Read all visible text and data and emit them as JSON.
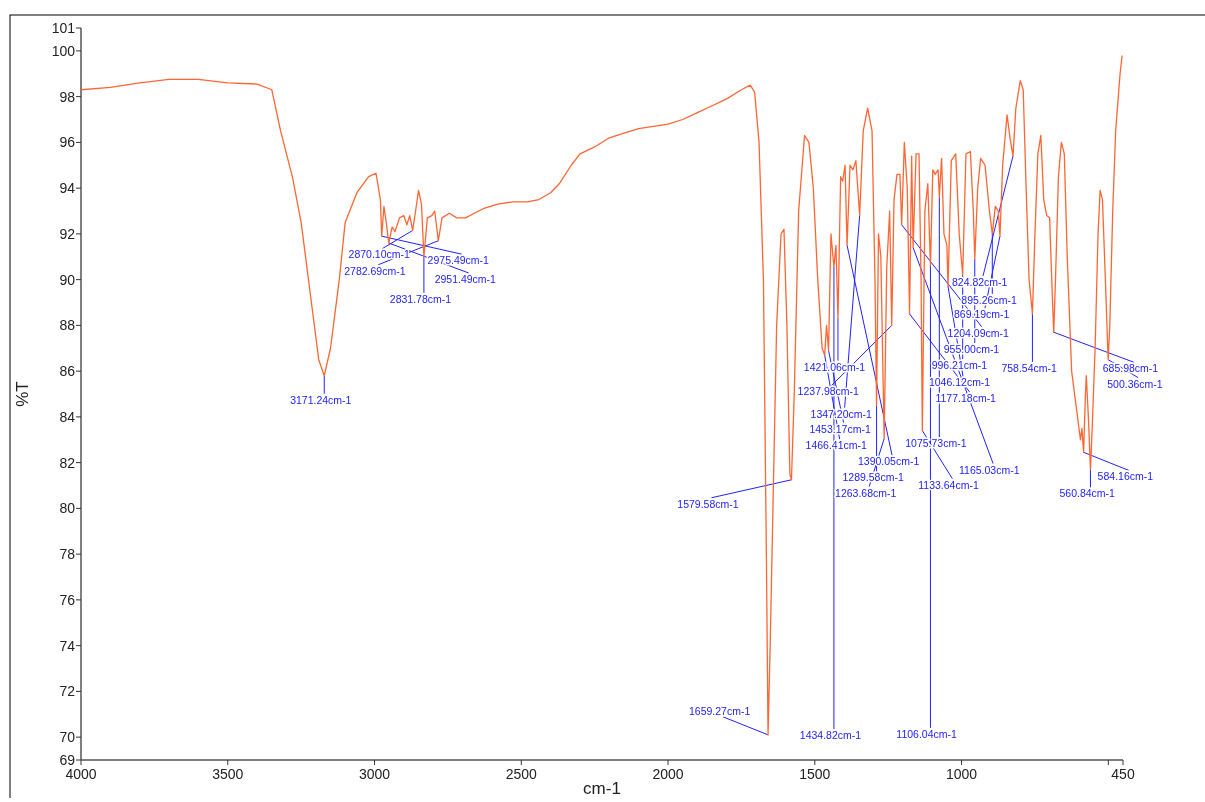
{
  "chart_data": {
    "type": "line",
    "xlabel": "cm-1",
    "ylabel": "%T",
    "xlim": [
      4000,
      450
    ],
    "ylim": [
      69,
      101
    ],
    "xticks": [
      4000,
      3500,
      3000,
      2500,
      2000,
      1500,
      1000,
      {
        "value": 500,
        "label": null
      },
      450
    ],
    "yticks": [
      69,
      70,
      72,
      74,
      76,
      78,
      80,
      82,
      84,
      86,
      88,
      90,
      92,
      94,
      96,
      98,
      100,
      101
    ],
    "series": [
      {
        "color": "#ff6633",
        "x": [
          4000,
          3900,
          3800,
          3700,
          3600,
          3500,
          3400,
          3350,
          3320,
          3280,
          3250,
          3220,
          3190,
          3171.24,
          3150,
          3120,
          3100,
          3060,
          3020,
          2995,
          2980,
          2975.49,
          2968,
          2960,
          2951.49,
          2940,
          2930,
          2915,
          2900,
          2890,
          2880,
          2870.1,
          2860,
          2850,
          2840,
          2831.78,
          2820,
          2805,
          2795,
          2782.69,
          2770,
          2745,
          2720,
          2690,
          2660,
          2630,
          2580,
          2530,
          2480,
          2440,
          2400,
          2370,
          2330,
          2300,
          2250,
          2200,
          2150,
          2100,
          2050,
          2000,
          1950,
          1900,
          1850,
          1800,
          1750,
          1720,
          1705,
          1690,
          1675,
          1665,
          1659.27,
          1652,
          1645,
          1630,
          1615,
          1605,
          1595,
          1585,
          1579.58,
          1570,
          1555,
          1535,
          1520,
          1505,
          1490,
          1475,
          1466.41,
          1460,
          1453.17,
          1445,
          1434.82,
          1428,
          1421.06,
          1412,
          1405,
          1397,
          1390.05,
          1380,
          1370,
          1360,
          1347.2,
          1335,
          1320,
          1305,
          1295,
          1289.58,
          1283,
          1275,
          1263.68,
          1255,
          1245,
          1237.98,
          1230,
          1220,
          1210,
          1204.09,
          1195,
          1185,
          1177.18,
          1170,
          1165.03,
          1155,
          1145,
          1138,
          1133.64,
          1125,
          1115,
          1106.04,
          1098,
          1090,
          1080,
          1075.73,
          1068,
          1060,
          1050,
          1046.12,
          1035,
          1020,
          1008,
          996.21,
          985,
          970,
          960,
          955,
          945,
          935,
          920,
          905,
          895.26,
          885,
          875,
          869.19,
          860,
          845,
          835,
          824.82,
          815,
          800,
          790,
          780,
          770,
          758.54,
          750,
          740,
          730,
          720,
          710,
          700,
          690,
          685.98,
          680,
          670,
          660,
          650,
          640,
          625,
          610,
          595,
          590,
          584.16,
          578,
          575,
          568,
          560.84,
          555,
          545,
          535,
          528,
          520,
          510,
          502,
          500.36,
          495,
          485,
          475,
          460,
          453
        ],
        "values": [
          98.3,
          98.4,
          98.6,
          98.75,
          98.75,
          98.6,
          98.55,
          98.3,
          96.5,
          94.5,
          92.5,
          89.5,
          86.5,
          85.8,
          87,
          90,
          92.5,
          93.8,
          94.5,
          94.65,
          93.5,
          91.9,
          93.2,
          92.5,
          91.6,
          92.3,
          92.1,
          92.7,
          92.8,
          92.4,
          92.8,
          92.15,
          93,
          93.9,
          93.3,
          91,
          92.7,
          92.8,
          93,
          91.7,
          92.7,
          92.9,
          92.7,
          92.7,
          92.9,
          93.1,
          93.3,
          93.4,
          93.4,
          93.5,
          93.8,
          94.2,
          95,
          95.5,
          95.8,
          96.2,
          96.4,
          96.6,
          96.7,
          96.8,
          97,
          97.3,
          97.6,
          97.9,
          98.3,
          98.5,
          98.2,
          96,
          90,
          78,
          70.1,
          74,
          78.5,
          88,
          92,
          92.2,
          88,
          81.5,
          81.25,
          85,
          93,
          96.3,
          96,
          94,
          90,
          87,
          86.7,
          88,
          86.9,
          92,
          90.55,
          91.5,
          88.3,
          94.5,
          94.3,
          95,
          91.5,
          95,
          94.8,
          95.2,
          92.8,
          96.5,
          97.5,
          96.5,
          90,
          84.5,
          92,
          91,
          83.05,
          90.5,
          93,
          88,
          93.5,
          94.6,
          94.6,
          92.4,
          96,
          94,
          88.5,
          95.4,
          91.4,
          95.5,
          95.5,
          90,
          83.4,
          93,
          94.2,
          90.6,
          94.8,
          94.6,
          94.8,
          93.6,
          95.3,
          92,
          91.5,
          89.7,
          95.2,
          95.5,
          92,
          90.2,
          95.5,
          95.6,
          93,
          90.9,
          94,
          95.3,
          95,
          93,
          92,
          93.2,
          93,
          91.9,
          95,
          97.2,
          96.2,
          95.4,
          97.5,
          98.7,
          98.3,
          94,
          90,
          88.5,
          92,
          95.5,
          96.3,
          93.5,
          92.8,
          92.7,
          89,
          87.7,
          90,
          94.5,
          96,
          95.5,
          91,
          86,
          84.5,
          83,
          83.5,
          82.45,
          85,
          85.8,
          84,
          81.7,
          83.5,
          87,
          92,
          93.9,
          93.5,
          90,
          87,
          86.5,
          88,
          93,
          96.5,
          99,
          99.8
        ]
      }
    ],
    "annotations": [
      {
        "text": "3171.24cm-1",
        "x": 3171.24,
        "y": 85.8
      },
      {
        "text": "2975.49cm-1",
        "x": 2975.49,
        "y": 91.9
      },
      {
        "text": "2951.49cm-1",
        "x": 2951.49,
        "y": 91.6
      },
      {
        "text": "2870.10cm-1",
        "x": 2870.1,
        "y": 92.15
      },
      {
        "text": "2831.78cm-1",
        "x": 2831.78,
        "y": 91
      },
      {
        "text": "2782.69cm-1",
        "x": 2782.69,
        "y": 91.7
      },
      {
        "text": "1659.27cm-1",
        "x": 1659.27,
        "y": 70.1
      },
      {
        "text": "1579.58cm-1",
        "x": 1579.58,
        "y": 81.25
      },
      {
        "text": "1466.41cm-1",
        "x": 1466.41,
        "y": 86.7
      },
      {
        "text": "1453.17cm-1",
        "x": 1453.17,
        "y": 86.9
      },
      {
        "text": "1434.82cm-1",
        "x": 1434.82,
        "y": 90.55
      },
      {
        "text": "1421.06cm-1",
        "x": 1421.06,
        "y": 88.3
      },
      {
        "text": "1390.05cm-1",
        "x": 1390.05,
        "y": 91.5
      },
      {
        "text": "1347.20cm-1",
        "x": 1347.2,
        "y": 92.8
      },
      {
        "text": "1289.58cm-1",
        "x": 1289.58,
        "y": 84.5
      },
      {
        "text": "1263.68cm-1",
        "x": 1263.68,
        "y": 83.05
      },
      {
        "text": "1237.98cm-1",
        "x": 1237.98,
        "y": 88
      },
      {
        "text": "1204.09cm-1",
        "x": 1204.09,
        "y": 92.4
      },
      {
        "text": "1177.18cm-1",
        "x": 1177.18,
        "y": 88.5
      },
      {
        "text": "1165.03cm-1",
        "x": 1165.03,
        "y": 91.4
      },
      {
        "text": "1133.64cm-1",
        "x": 1133.64,
        "y": 83.4
      },
      {
        "text": "1106.04cm-1",
        "x": 1106.04,
        "y": 90.6
      },
      {
        "text": "1075.73cm-1",
        "x": 1075.73,
        "y": 93.6
      },
      {
        "text": "1046.12cm-1",
        "x": 1046.12,
        "y": 89.7
      },
      {
        "text": "996.21cm-1",
        "x": 996.21,
        "y": 90.2
      },
      {
        "text": "955.00cm-1",
        "x": 955,
        "y": 90.9
      },
      {
        "text": "895.26cm-1",
        "x": 895.26,
        "y": 92
      },
      {
        "text": "869.19cm-1",
        "x": 869.19,
        "y": 91.9
      },
      {
        "text": "824.82cm-1",
        "x": 824.82,
        "y": 95.4
      },
      {
        "text": "758.54cm-1",
        "x": 758.54,
        "y": 88.5
      },
      {
        "text": "685.98cm-1",
        "x": 685.98,
        "y": 87.7
      },
      {
        "text": "584.16cm-1",
        "x": 584.16,
        "y": 82.45
      },
      {
        "text": "560.84cm-1",
        "x": 560.84,
        "y": 81.7
      },
      {
        "text": "500.36cm-1",
        "x": 500.36,
        "y": 86.5
      }
    ]
  }
}
